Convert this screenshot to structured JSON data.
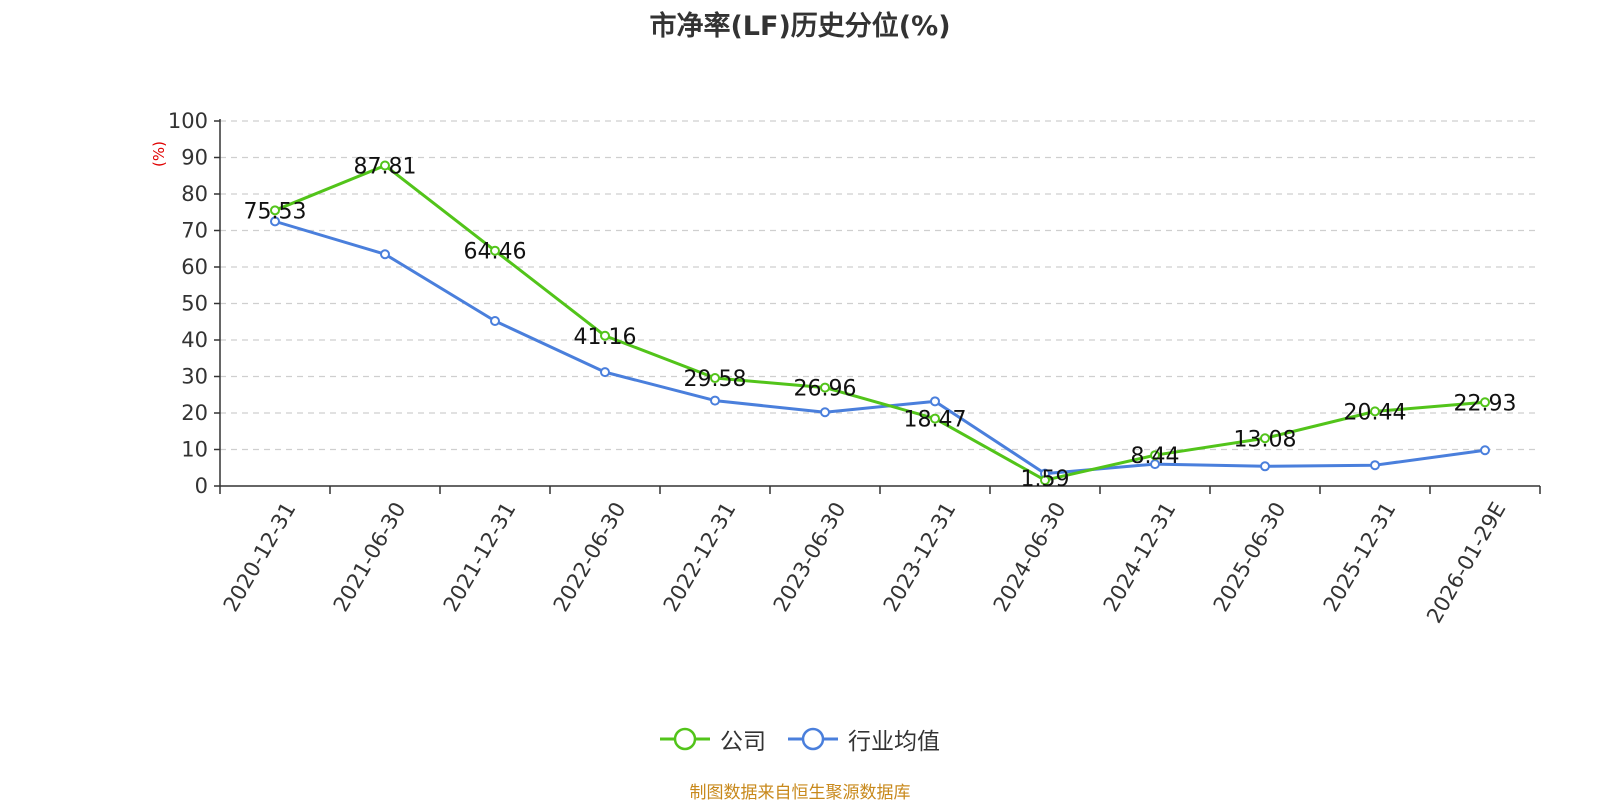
{
  "title": "市净率(LF)历史分位(%)",
  "source_note": "制图数据来自恒生聚源数据库",
  "chart_data": {
    "type": "line",
    "title": "市净率(LF)历史分位(%)",
    "ylabel": "(%)",
    "xlabel": "",
    "ylim": [
      0,
      100
    ],
    "yticks": [
      0,
      10,
      20,
      30,
      40,
      50,
      60,
      70,
      80,
      90,
      100
    ],
    "grid": true,
    "legend_position": "bottom",
    "categories": [
      "2020-12-31",
      "2021-06-30",
      "2021-12-31",
      "2022-06-30",
      "2022-12-31",
      "2023-06-30",
      "2023-12-31",
      "2024-06-30",
      "2024-12-31",
      "2025-06-30",
      "2025-12-31",
      "2026-01-29E"
    ],
    "series": [
      {
        "name": "公司",
        "color": "#52c41a",
        "values": [
          75.53,
          87.81,
          64.46,
          41.16,
          29.58,
          26.96,
          18.47,
          1.59,
          8.44,
          13.08,
          20.44,
          22.93
        ],
        "labels": [
          "75.53",
          "87.81",
          "64.46",
          "41.16",
          "29.58",
          "26.96",
          "18.47",
          "1.59",
          "8.44",
          "13.08",
          "20.44",
          "22.93"
        ]
      },
      {
        "name": "行业均值",
        "color": "#4a7fdc",
        "values": [
          72.5,
          63.5,
          45.2,
          31.2,
          23.4,
          20.2,
          23.2,
          3.4,
          6.0,
          5.4,
          5.7,
          9.8
        ]
      }
    ]
  }
}
